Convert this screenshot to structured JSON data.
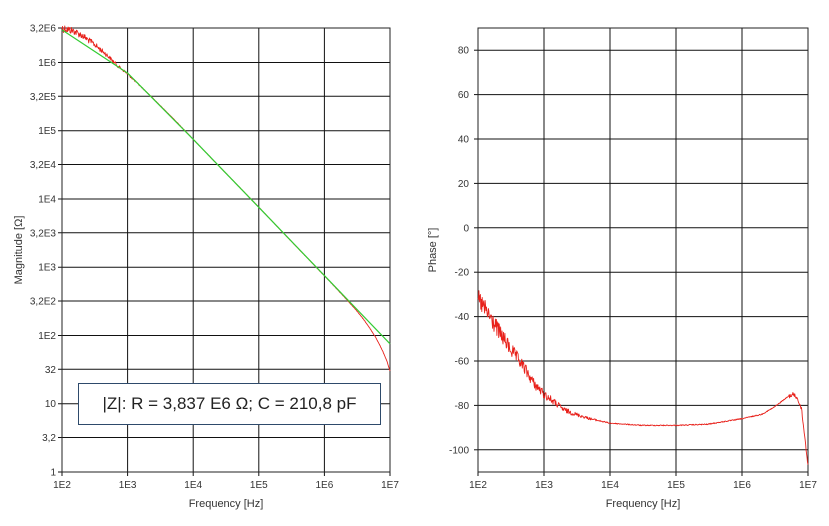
{
  "annotation": "|Z|: R = 3,837 E6 Ω; C = 210,8 pF",
  "chart_data": [
    {
      "type": "line",
      "xlabel": "Frequency [Hz]",
      "ylabel": "Magnitude [Ω]",
      "xscale": "log",
      "yscale": "log",
      "xlim": [
        100,
        10000000
      ],
      "ylim": [
        1,
        3200000
      ],
      "xticks": [
        100,
        1000,
        10000,
        100000,
        1000000,
        10000000
      ],
      "xticklabels": [
        "1E2",
        "1E3",
        "1E4",
        "1E5",
        "1E6",
        "1E7"
      ],
      "yticks": [
        1,
        3.2,
        10,
        32,
        100,
        320,
        1000,
        3200,
        10000,
        32000,
        100000,
        320000,
        1000000,
        3200000
      ],
      "yticklabels": [
        "1",
        "3,2",
        "10",
        "32",
        "1E2",
        "3,2E2",
        "1E3",
        "3,2E3",
        "1E4",
        "3,2E4",
        "1E5",
        "3,2E5",
        "1E6",
        "3,2E6"
      ],
      "grid": true,
      "series": [
        {
          "role": "measured",
          "color": "#e8211b",
          "x": [
            100,
            150,
            200,
            300,
            500,
            700,
            1000,
            2000,
            5000,
            10000,
            30000,
            100000,
            300000,
            1000000,
            2000000,
            3000000,
            4000000,
            5000000,
            6000000,
            7000000,
            8000000,
            9000000,
            10000000
          ],
          "y": [
            3200000,
            2900000,
            2500000,
            1900000,
            1250000,
            900000,
            680000,
            360000,
            150000,
            75000,
            25000,
            7600,
            2500,
            750,
            370,
            240,
            170,
            125,
            95,
            72,
            55,
            42,
            30
          ]
        },
        {
          "role": "fit",
          "color": "#33cc33",
          "x": [
            100,
            1000,
            10000,
            100000,
            1000000,
            10000000
          ],
          "y": [
            3000000,
            700000,
            75000,
            7550,
            755,
            75.5
          ]
        }
      ]
    },
    {
      "type": "line",
      "xlabel": "Frequency [Hz]",
      "ylabel": "Phase [°]",
      "xscale": "log",
      "yscale": "linear",
      "xlim": [
        100,
        10000000
      ],
      "ylim": [
        -110,
        90
      ],
      "xticks": [
        100,
        1000,
        10000,
        100000,
        1000000,
        10000000
      ],
      "xticklabels": [
        "1E2",
        "1E3",
        "1E4",
        "1E5",
        "1E6",
        "1E7"
      ],
      "yticks": [
        -100,
        -80,
        -60,
        -40,
        -20,
        0,
        20,
        40,
        60,
        80
      ],
      "yticklabels": [
        "-100",
        "-80",
        "-60",
        "-40",
        "-20",
        "0",
        "20",
        "40",
        "60",
        "80"
      ],
      "grid": true,
      "series": [
        {
          "role": "measured",
          "color": "#e8211b",
          "x": [
            100,
            150,
            200,
            300,
            500,
            700,
            1000,
            1500,
            2000,
            3000,
            5000,
            10000,
            30000,
            100000,
            300000,
            1000000,
            2000000,
            3000000,
            5000000,
            6000000,
            7000000,
            8000000,
            9000000,
            10000000
          ],
          "y": [
            -32,
            -40,
            -46,
            -54,
            -63,
            -70,
            -75,
            -79,
            -82,
            -84,
            -86,
            -88,
            -89,
            -89,
            -88.5,
            -86,
            -84,
            -81,
            -76,
            -75,
            -77,
            -82,
            -95,
            -107
          ]
        }
      ]
    }
  ]
}
